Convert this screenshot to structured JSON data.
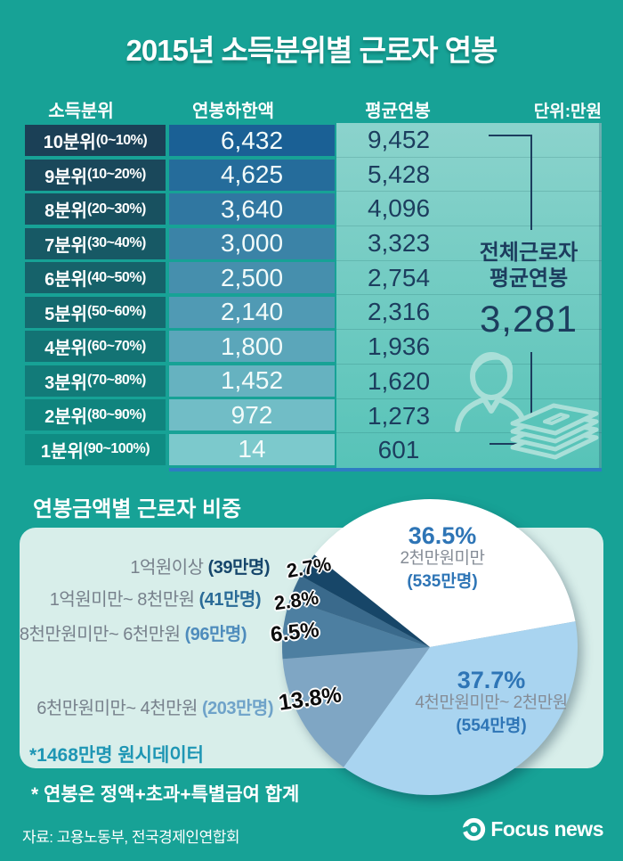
{
  "title": "2015년 소득분위별 근로자 연봉",
  "colors": {
    "background": "#17A296",
    "accent_blue": "#2E75B6",
    "ink_navy": "#1C3D5E",
    "panel_mint": "#D8EEEA",
    "avg_panel_top": "#8BD3CC",
    "avg_panel_bottom": "#57C3B8",
    "table_underline": "#2E7CC2",
    "gray_label": "#77818C",
    "raw_note_teal": "#1E96B4"
  },
  "table": {
    "col_headers": [
      "소득분위",
      "연봉하한액",
      "평균연봉"
    ],
    "unit_note": "단위:만원",
    "overall": {
      "line1": "전체근로자",
      "line2": "평균연봉",
      "value": "3,281"
    }
  },
  "chart_data": [
    {
      "type": "table",
      "title": "2015년 소득분위별 근로자 연봉 (단위:만원)",
      "columns": [
        "소득분위",
        "연봉하한액",
        "평균연봉"
      ],
      "rows": [
        {
          "decile": "10분위",
          "range": "(0~10%)",
          "min": "6,432",
          "avg": "9,452",
          "label_bg": "#1B4056",
          "value_bg": "#1A6095"
        },
        {
          "decile": "9분위",
          "range": "(10~20%)",
          "min": "4,625",
          "avg": "5,428",
          "label_bg": "#1A485B",
          "value_bg": "#256C9B"
        },
        {
          "decile": "8분위",
          "range": "(20~30%)",
          "min": "3,640",
          "avg": "4,096",
          "label_bg": "#185160",
          "value_bg": "#3077A1"
        },
        {
          "decile": "7분위",
          "range": "(30~40%)",
          "min": "3,000",
          "avg": "3,323",
          "label_bg": "#175965",
          "value_bg": "#3B83A7"
        },
        {
          "decile": "6분위",
          "range": "(40~50%)",
          "min": "2,500",
          "avg": "2,754",
          "label_bg": "#16626A",
          "value_bg": "#468FAD"
        },
        {
          "decile": "5분위",
          "range": "(50~60%)",
          "min": "2,140",
          "avg": "2,316",
          "label_bg": "#146A6F",
          "value_bg": "#509AB4"
        },
        {
          "decile": "4분위",
          "range": "(60~70%)",
          "min": "1,800",
          "avg": "1,936",
          "label_bg": "#137374",
          "value_bg": "#5BA6BA"
        },
        {
          "decile": "3분위",
          "range": "(70~80%)",
          "min": "1,452",
          "avg": "1,620",
          "label_bg": "#127B79",
          "value_bg": "#66B2C0"
        },
        {
          "decile": "2분위",
          "range": "(80~90%)",
          "min": "972",
          "avg": "1,273",
          "label_bg": "#10847E",
          "value_bg": "#71BDC6"
        },
        {
          "decile": "1분위",
          "range": "(90~100%)",
          "min": "14",
          "avg": "601",
          "label_bg": "#0F8C83",
          "value_bg": "#7CC9CC"
        }
      ],
      "overall_average": "3,281"
    },
    {
      "type": "pie",
      "title": "연봉금액별 근로자 비중",
      "start_angle_deg": -51.4,
      "slices": [
        {
          "label": "2천만원미만",
          "count": "(535만명)",
          "pct": 36.5,
          "color": "#FFFFFF"
        },
        {
          "label": "4천만원미만~ 2천만원",
          "count": "(554만명)",
          "pct": 37.7,
          "color": "#A9D4F0"
        },
        {
          "label": "6천만원미만~ 4천만원",
          "count": "(203만명)",
          "pct": 13.8,
          "color": "#7FA6C4",
          "count_color": "#6FA3C9"
        },
        {
          "label": "8천만원미만~ 6천만원",
          "count": "(96만명)",
          "pct": 6.5,
          "color": "#4D7FA1",
          "count_color": "#4E8CBC"
        },
        {
          "label": "1억원미만~ 8천만원",
          "count": "(41만명)",
          "pct": 2.8,
          "color": "#3A6A8C",
          "count_color": "#2A6B97"
        },
        {
          "label": "1억원이상",
          "count": "(39만명)",
          "pct": 2.7,
          "color": "#174668",
          "count_color": "#16466B"
        }
      ],
      "footnote": "*1468만명 원시데이터"
    }
  ],
  "pie_section": {
    "title": "연봉금액별 근로자 비중",
    "raw_data_note": "*1468만명 원시데이터",
    "salary_note": "* 연봉은 정액+초과+특별급여 합계"
  },
  "footer": {
    "source": "자료: 고용노동부, 전국경제인연합회",
    "logo_text": "Focus news"
  }
}
